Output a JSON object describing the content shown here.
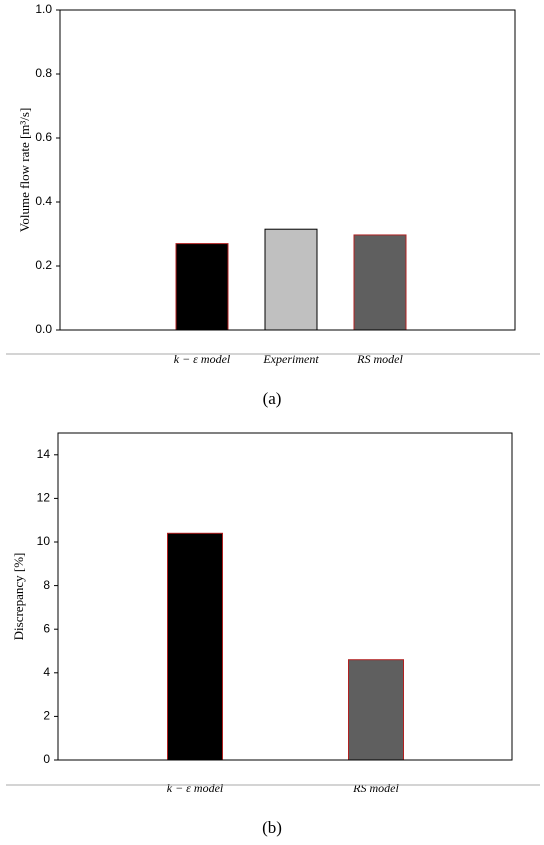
{
  "chart_data": [
    {
      "type": "bar",
      "y_label": "Volume flow rate [m³/s]",
      "caption": "(a)",
      "categories": [
        "k − ε model",
        "Experiment",
        "RS model"
      ],
      "values": [
        0.27,
        0.315,
        0.297
      ],
      "colors": [
        "#000000",
        "#c0c0c0",
        "#5f5f5f"
      ],
      "edgecolors": [
        "#b02020",
        "#000000",
        "#b02020"
      ],
      "ylim": [
        0,
        1.0
      ],
      "yticks": [
        {
          "value": 0,
          "label": "0.0"
        },
        {
          "value": 0.2,
          "label": "0.2"
        },
        {
          "value": 0.4,
          "label": "0.4"
        },
        {
          "value": 0.6,
          "label": "0.6"
        },
        {
          "value": 0.8,
          "label": "0.8"
        },
        {
          "value": 1.0,
          "label": "1.0"
        }
      ]
    },
    {
      "type": "bar",
      "y_label": "Discrepancy [%]",
      "caption": "(b)",
      "categories": [
        "k − ε model",
        "RS model"
      ],
      "values": [
        10.4,
        4.6
      ],
      "colors": [
        "#000000",
        "#5f5f5f"
      ],
      "edgecolors": [
        "#b02020",
        "#b02020"
      ],
      "ylim": [
        0,
        15
      ],
      "yticks": [
        0,
        2,
        4,
        6,
        8,
        10,
        12,
        14
      ]
    }
  ]
}
